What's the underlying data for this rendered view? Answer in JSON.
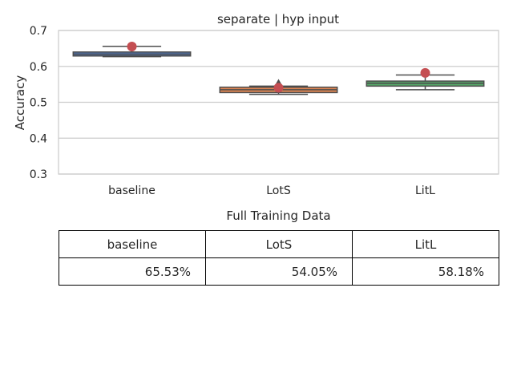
{
  "chart_data": {
    "type": "box",
    "title": "separate | hyp input",
    "xlabel": "",
    "ylabel": "Accuracy",
    "ylim": [
      0.3,
      0.7
    ],
    "yticks": [
      "0.3",
      "0.4",
      "0.5",
      "0.6",
      "0.7"
    ],
    "grid": true,
    "categories": [
      "baseline",
      "LotS",
      "LitL"
    ],
    "boxes": [
      {
        "category": "baseline",
        "whisker_low": 0.627,
        "q1": 0.629,
        "median": 0.634,
        "q3": 0.64,
        "whisker_high": 0.656,
        "outliers": [],
        "marker": 0.6553,
        "color": "#4c72b0"
      },
      {
        "category": "LotS",
        "whisker_low": 0.522,
        "q1": 0.527,
        "median": 0.535,
        "q3": 0.542,
        "whisker_high": 0.545,
        "outliers": [
          0.556
        ],
        "marker": 0.5405,
        "color": "#dd8452"
      },
      {
        "category": "LitL",
        "whisker_low": 0.535,
        "q1": 0.545,
        "median": 0.553,
        "q3": 0.559,
        "whisker_high": 0.576,
        "outliers": [],
        "marker": 0.5818,
        "color": "#55a868"
      }
    ],
    "marker_color": "#c44e52",
    "box_edge_color": "#4d4d4d"
  },
  "table": {
    "caption": "Full Training Data",
    "headers": [
      "baseline",
      "LotS",
      "LitL"
    ],
    "values": [
      "65.53%",
      "54.05%",
      "58.18%"
    ]
  }
}
